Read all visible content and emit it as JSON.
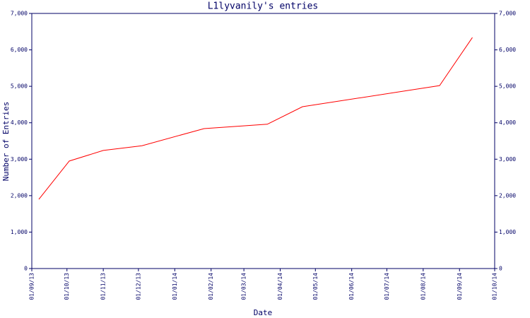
{
  "chart_data": {
    "type": "line",
    "title": "L1lyvanily's entries",
    "xlabel": "Date",
    "ylabel": "Number of Entries",
    "x": [
      "2013-09-07",
      "2013-10-03",
      "2013-11-01",
      "2013-12-04",
      "2014-01-26",
      "2014-03-21",
      "2014-04-20",
      "2014-08-15",
      "2014-09-12"
    ],
    "values": [
      1900,
      2950,
      3240,
      3370,
      3840,
      3960,
      4440,
      5020,
      6340
    ],
    "color": "#ff0000",
    "xlim": [
      "2013-09-01",
      "2014-10-01"
    ],
    "xticks": [
      {
        "value": "2013-09-01",
        "label": "01/09/13"
      },
      {
        "value": "2013-10-01",
        "label": "01/10/13"
      },
      {
        "value": "2013-11-01",
        "label": "01/11/13"
      },
      {
        "value": "2013-12-01",
        "label": "01/12/13"
      },
      {
        "value": "2014-01-01",
        "label": "01/01/14"
      },
      {
        "value": "2014-02-01",
        "label": "01/02/14"
      },
      {
        "value": "2014-03-01",
        "label": "01/03/14"
      },
      {
        "value": "2014-04-01",
        "label": "01/04/14"
      },
      {
        "value": "2014-05-01",
        "label": "01/05/14"
      },
      {
        "value": "2014-06-01",
        "label": "01/06/14"
      },
      {
        "value": "2014-07-01",
        "label": "01/07/14"
      },
      {
        "value": "2014-08-01",
        "label": "01/08/14"
      },
      {
        "value": "2014-09-01",
        "label": "01/09/14"
      },
      {
        "value": "2014-10-01",
        "label": "01/10/14"
      }
    ],
    "ylim": [
      0,
      7000
    ],
    "yticks": [
      0,
      {
        "value": 1000,
        "label": "1,000"
      },
      {
        "value": 2000,
        "label": "2,000"
      },
      {
        "value": 3000,
        "label": "3,000"
      },
      {
        "value": 4000,
        "label": "4,000"
      },
      {
        "value": 5000,
        "label": "5,000"
      },
      {
        "value": 6000,
        "label": "6,000"
      },
      {
        "value": 7000,
        "label": "7,000"
      }
    ],
    "y2lim": [
      0,
      7000
    ],
    "y2ticks": [
      0,
      {
        "value": 1000,
        "label": "1,000"
      },
      {
        "value": 2000,
        "label": "2,000"
      },
      {
        "value": 3000,
        "label": "3,000"
      },
      {
        "value": 4000,
        "label": "4,000"
      },
      {
        "value": 5000,
        "label": "5,000"
      },
      {
        "value": 6000,
        "label": "6,000"
      },
      {
        "value": 7000,
        "label": "7,000"
      }
    ]
  }
}
